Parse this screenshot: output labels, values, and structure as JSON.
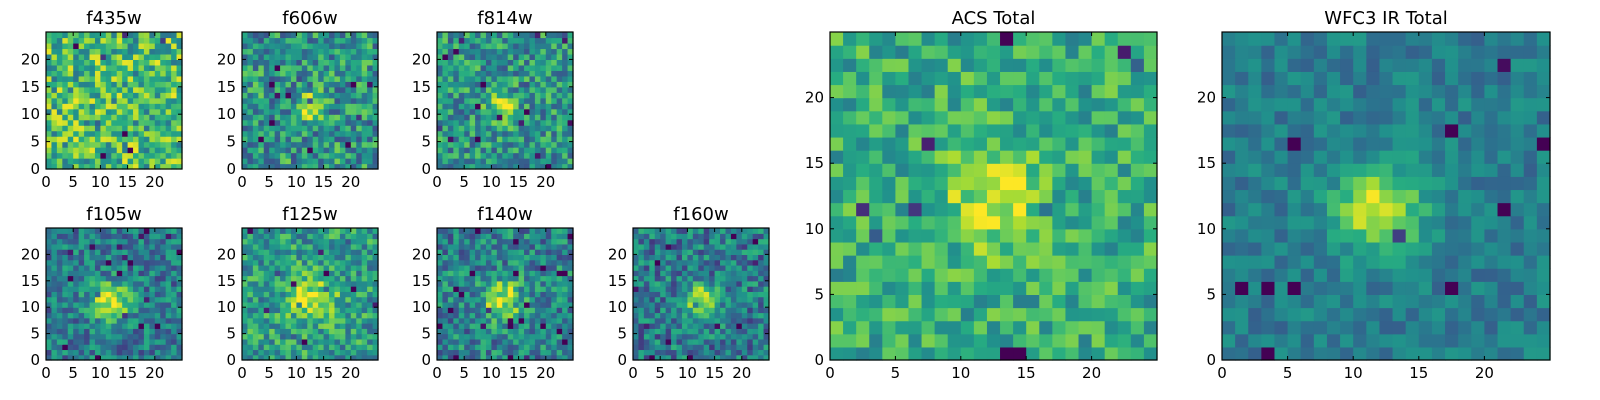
{
  "chart_data": [
    {
      "type": "heatmap",
      "title": "f435w",
      "x_ticks": [
        "0",
        "5",
        "10",
        "15",
        "20"
      ],
      "y_ticks": [
        "0",
        "5",
        "10",
        "15",
        "20"
      ],
      "xlim": [
        0,
        25
      ],
      "ylim": [
        0,
        25
      ],
      "colormap": "viridis",
      "grid": false,
      "signal": {
        "center": [
          13,
          11
        ],
        "peak": 0.0,
        "sigma": 2.5
      },
      "background": 0.68,
      "noise": 0.3,
      "seed": 11
    },
    {
      "type": "heatmap",
      "title": "f606w",
      "x_ticks": [
        "0",
        "5",
        "10",
        "15",
        "20"
      ],
      "y_ticks": [
        "0",
        "5",
        "10",
        "15",
        "20"
      ],
      "xlim": [
        0,
        25
      ],
      "ylim": [
        0,
        25
      ],
      "colormap": "viridis",
      "grid": false,
      "signal": {
        "center": [
          12.5,
          11.5
        ],
        "peak": 0.35,
        "sigma": 1.8
      },
      "background": 0.52,
      "noise": 0.28,
      "seed": 23
    },
    {
      "type": "heatmap",
      "title": "f814w",
      "x_ticks": [
        "0",
        "5",
        "10",
        "15",
        "20"
      ],
      "y_ticks": [
        "0",
        "5",
        "10",
        "15",
        "20"
      ],
      "xlim": [
        0,
        25
      ],
      "ylim": [
        0,
        25
      ],
      "colormap": "viridis",
      "grid": false,
      "signal": {
        "center": [
          12,
          11.5
        ],
        "peak": 0.45,
        "sigma": 1.8
      },
      "background": 0.52,
      "noise": 0.26,
      "seed": 37
    },
    {
      "type": "heatmap",
      "title": "f105w",
      "x_ticks": [
        "0",
        "5",
        "10",
        "15",
        "20"
      ],
      "y_ticks": [
        "0",
        "5",
        "10",
        "15",
        "20"
      ],
      "xlim": [
        0,
        25
      ],
      "ylim": [
        0,
        25
      ],
      "colormap": "viridis",
      "grid": false,
      "signal": {
        "center": [
          12,
          11
        ],
        "peak": 0.55,
        "sigma": 2.5
      },
      "background": 0.42,
      "noise": 0.22,
      "seed": 41
    },
    {
      "type": "heatmap",
      "title": "f125w",
      "x_ticks": [
        "0",
        "5",
        "10",
        "15",
        "20"
      ],
      "y_ticks": [
        "0",
        "5",
        "10",
        "15",
        "20"
      ],
      "xlim": [
        0,
        25
      ],
      "ylim": [
        0,
        25
      ],
      "colormap": "viridis",
      "grid": false,
      "signal": {
        "center": [
          13,
          11.5
        ],
        "peak": 0.4,
        "sigma": 3.0
      },
      "background": 0.55,
      "noise": 0.24,
      "seed": 53
    },
    {
      "type": "heatmap",
      "title": "f140w",
      "x_ticks": [
        "0",
        "5",
        "10",
        "15",
        "20"
      ],
      "y_ticks": [
        "0",
        "5",
        "10",
        "15",
        "20"
      ],
      "xlim": [
        0,
        25
      ],
      "ylim": [
        0,
        25
      ],
      "colormap": "viridis",
      "grid": false,
      "signal": {
        "center": [
          12,
          11.5
        ],
        "peak": 0.5,
        "sigma": 2.5
      },
      "background": 0.45,
      "noise": 0.24,
      "seed": 67
    },
    {
      "type": "heatmap",
      "title": "f160w",
      "x_ticks": [
        "0",
        "5",
        "10",
        "15",
        "20"
      ],
      "y_ticks": [
        "0",
        "5",
        "10",
        "15",
        "20"
      ],
      "xlim": [
        0,
        25
      ],
      "ylim": [
        0,
        25
      ],
      "colormap": "viridis",
      "grid": false,
      "signal": {
        "center": [
          12.5,
          11.5
        ],
        "peak": 0.55,
        "sigma": 2.0
      },
      "background": 0.42,
      "noise": 0.24,
      "seed": 79
    },
    {
      "type": "heatmap",
      "title": "ACS Total",
      "x_ticks": [
        "0",
        "5",
        "10",
        "15",
        "20"
      ],
      "y_ticks": [
        "0",
        "5",
        "10",
        "15",
        "20"
      ],
      "xlim": [
        0,
        25
      ],
      "ylim": [
        0,
        25
      ],
      "colormap": "viridis",
      "grid": false,
      "signal": {
        "center": [
          12.5,
          12
        ],
        "peak": 0.35,
        "sigma": 2.5
      },
      "background": 0.62,
      "noise": 0.2,
      "seed": 97
    },
    {
      "type": "heatmap",
      "title": "WFC3 IR Total",
      "x_ticks": [
        "0",
        "5",
        "10",
        "15",
        "20"
      ],
      "y_ticks": [
        "0",
        "5",
        "10",
        "15",
        "20"
      ],
      "xlim": [
        0,
        25
      ],
      "ylim": [
        0,
        25
      ],
      "colormap": "viridis",
      "grid": false,
      "signal": {
        "center": [
          12,
          11.5
        ],
        "peak": 0.55,
        "sigma": 2.3
      },
      "background": 0.42,
      "noise": 0.12,
      "seed": 103
    }
  ]
}
